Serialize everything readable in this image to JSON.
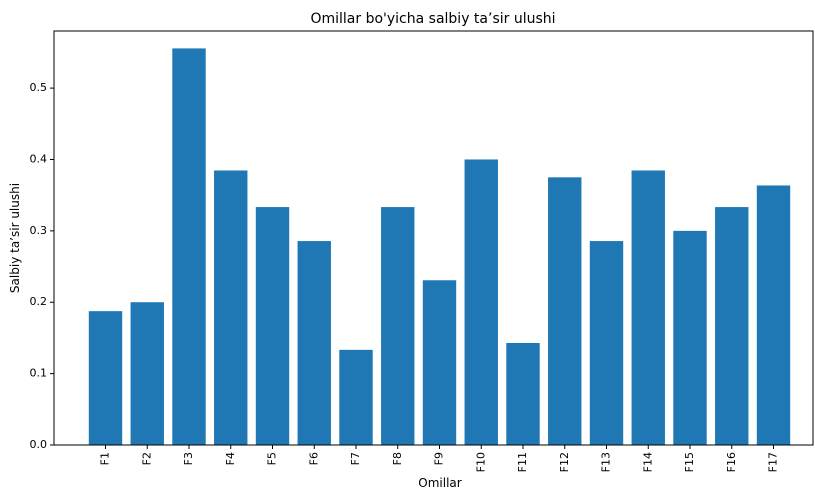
{
  "chart_data": {
    "type": "bar",
    "title": "Omillar bo'yicha salbiy ta’sir ulushi",
    "xlabel": "Omillar",
    "ylabel": "Salbiy ta’sir ulushi",
    "categories": [
      "F1",
      "F2",
      "F3",
      "F4",
      "F5",
      "F6",
      "F7",
      "F8",
      "F9",
      "F10",
      "F11",
      "F12",
      "F13",
      "F14",
      "F15",
      "F16",
      "F17"
    ],
    "values": [
      0.1875,
      0.2,
      0.5556,
      0.3846,
      0.3333,
      0.2857,
      0.1333,
      0.3333,
      0.2308,
      0.4,
      0.1429,
      0.375,
      0.2857,
      0.3846,
      0.3,
      0.3333,
      0.3636
    ],
    "ylim": [
      0,
      0.58
    ],
    "yticks": [
      0.0,
      0.1,
      0.2,
      0.3,
      0.4,
      0.5
    ],
    "ytick_labels": [
      "0.0",
      "0.1",
      "0.2",
      "0.3",
      "0.4",
      "0.5"
    ],
    "bar_color": "#1f77b4",
    "grid": false,
    "legend": "none"
  }
}
